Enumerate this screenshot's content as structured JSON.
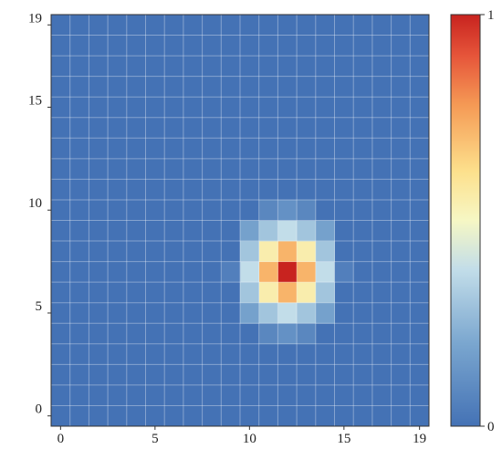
{
  "chart_data": {
    "type": "heatmap",
    "title": "",
    "xlabel": "",
    "ylabel": "",
    "x_ticks": [
      0,
      5,
      10,
      15,
      19
    ],
    "y_ticks": [
      0,
      5,
      10,
      15,
      19
    ],
    "xlim": [
      0,
      19
    ],
    "ylim": [
      0,
      19
    ],
    "grid": true,
    "colorscale": "blue-yellow-red",
    "colorbar": {
      "ticks": [
        {
          "value": 0,
          "label": "0"
        },
        {
          "value": 1,
          "label": "1"
        }
      ],
      "range": [
        0,
        1
      ]
    },
    "background_value": 0.0,
    "cells": [
      {
        "x": 12,
        "y": 7,
        "value": 1.0
      },
      {
        "x": 12,
        "y": 8,
        "value": 0.72
      },
      {
        "x": 12,
        "y": 6,
        "value": 0.72
      },
      {
        "x": 11,
        "y": 7,
        "value": 0.72
      },
      {
        "x": 13,
        "y": 7,
        "value": 0.72
      },
      {
        "x": 11,
        "y": 8,
        "value": 0.55
      },
      {
        "x": 13,
        "y": 8,
        "value": 0.55
      },
      {
        "x": 11,
        "y": 6,
        "value": 0.55
      },
      {
        "x": 13,
        "y": 6,
        "value": 0.55
      },
      {
        "x": 12,
        "y": 9,
        "value": 0.38
      },
      {
        "x": 12,
        "y": 5,
        "value": 0.38
      },
      {
        "x": 10,
        "y": 7,
        "value": 0.38
      },
      {
        "x": 14,
        "y": 7,
        "value": 0.38
      },
      {
        "x": 11,
        "y": 9,
        "value": 0.3
      },
      {
        "x": 13,
        "y": 9,
        "value": 0.3
      },
      {
        "x": 11,
        "y": 5,
        "value": 0.3
      },
      {
        "x": 13,
        "y": 5,
        "value": 0.3
      },
      {
        "x": 10,
        "y": 8,
        "value": 0.3
      },
      {
        "x": 14,
        "y": 8,
        "value": 0.3
      },
      {
        "x": 10,
        "y": 6,
        "value": 0.3
      },
      {
        "x": 14,
        "y": 6,
        "value": 0.3
      },
      {
        "x": 10,
        "y": 9,
        "value": 0.18
      },
      {
        "x": 14,
        "y": 9,
        "value": 0.18
      },
      {
        "x": 10,
        "y": 5,
        "value": 0.18
      },
      {
        "x": 14,
        "y": 5,
        "value": 0.18
      },
      {
        "x": 12,
        "y": 10,
        "value": 0.12
      },
      {
        "x": 12,
        "y": 4,
        "value": 0.12
      },
      {
        "x": 11,
        "y": 10,
        "value": 0.08
      },
      {
        "x": 13,
        "y": 10,
        "value": 0.08
      },
      {
        "x": 11,
        "y": 4,
        "value": 0.08
      },
      {
        "x": 13,
        "y": 4,
        "value": 0.08
      },
      {
        "x": 9,
        "y": 7,
        "value": 0.05
      },
      {
        "x": 15,
        "y": 7,
        "value": 0.05
      }
    ]
  }
}
